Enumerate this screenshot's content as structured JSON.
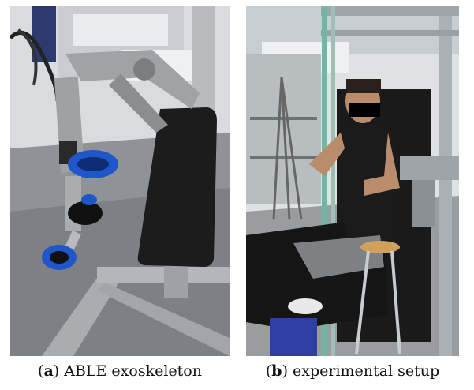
{
  "figure": {
    "panels": [
      {
        "letter": "a",
        "caption_text": "ABLE exoskeleton",
        "image_description": "photo-exoskeleton"
      },
      {
        "letter": "b",
        "caption_text": "experimental setup",
        "image_description": "photo-experimental-setup"
      }
    ]
  },
  "colors": {
    "aluminum": "#a9adb0",
    "blue_strap": "#1f56c9",
    "black_pad": "#1c1c1c",
    "floor": "#8f9296",
    "wall": "#dfe2e3",
    "green_pole": "#6fb7a4"
  }
}
